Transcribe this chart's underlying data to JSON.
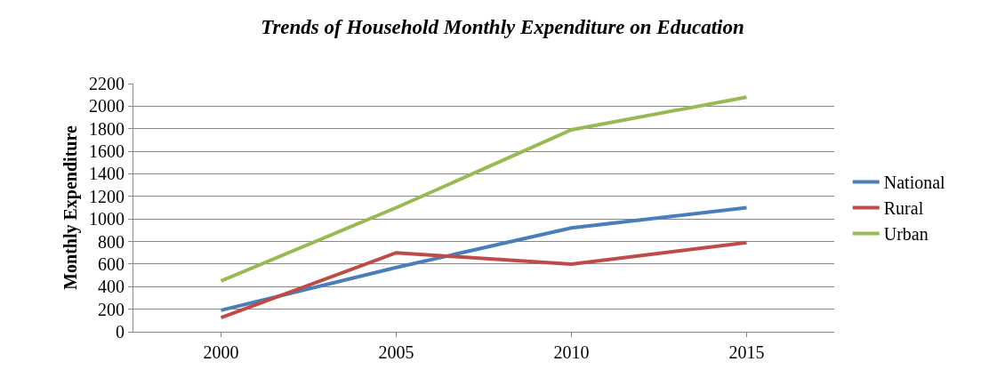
{
  "chart_data": {
    "type": "line",
    "title": "Trends of Household Monthly Expenditure on Education",
    "ylabel": "Monthly Expenditure",
    "categories": [
      "2000",
      "2005",
      "2010",
      "2015"
    ],
    "series": [
      {
        "name": "National",
        "color": "#4a7ebb",
        "values": [
          190,
          570,
          920,
          1100
        ]
      },
      {
        "name": "Rural",
        "color": "#be4b48",
        "values": [
          125,
          700,
          600,
          790
        ]
      },
      {
        "name": "Urban",
        "color": "#98b954",
        "values": [
          450,
          1100,
          1790,
          2080
        ]
      }
    ],
    "ylim": [
      0,
      2200
    ],
    "yticks": [
      0,
      200,
      400,
      600,
      800,
      1000,
      1200,
      1400,
      1600,
      1800,
      2000,
      2200
    ],
    "grid": "y",
    "legend": "right",
    "marker": "none",
    "line_style": "solid"
  }
}
